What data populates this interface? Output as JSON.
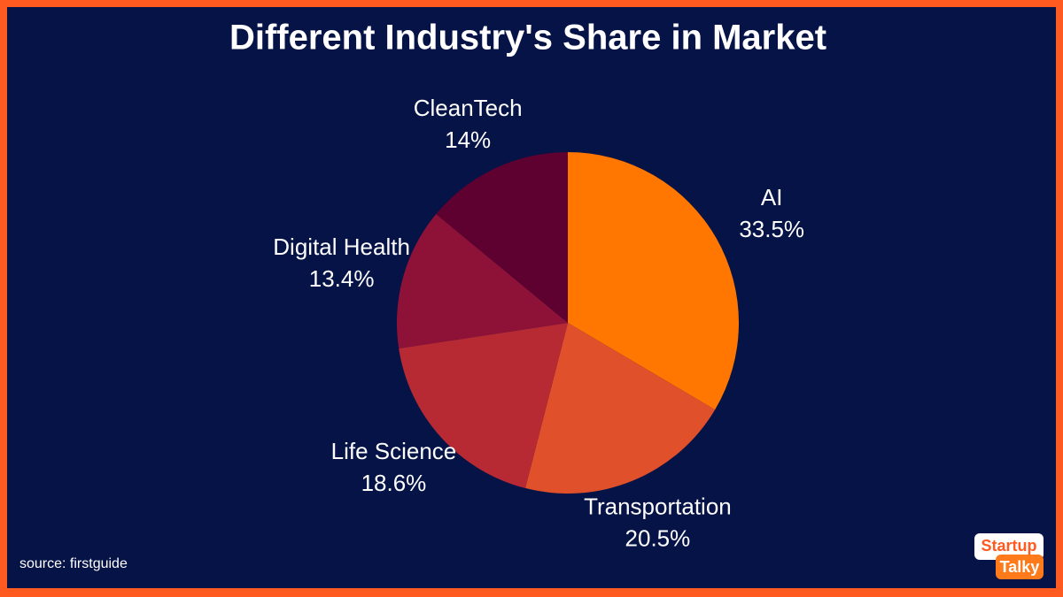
{
  "chart_data": {
    "type": "pie",
    "title": "Different Industry's Share in Market",
    "categories": [
      "AI",
      "Transportation",
      "Life Science",
      "Digital Health",
      "CleanTech"
    ],
    "values": [
      33.5,
      20.5,
      18.6,
      13.4,
      14
    ],
    "value_labels": [
      "33.5%",
      "20.5%",
      "18.6%",
      "13.4%",
      "14%"
    ],
    "colors": [
      "#ff7700",
      "#e0502a",
      "#b82a33",
      "#8e1238",
      "#5e0030"
    ],
    "source": "source: firstguide"
  },
  "logo": {
    "line1": "Startup",
    "line2": "Talky"
  }
}
